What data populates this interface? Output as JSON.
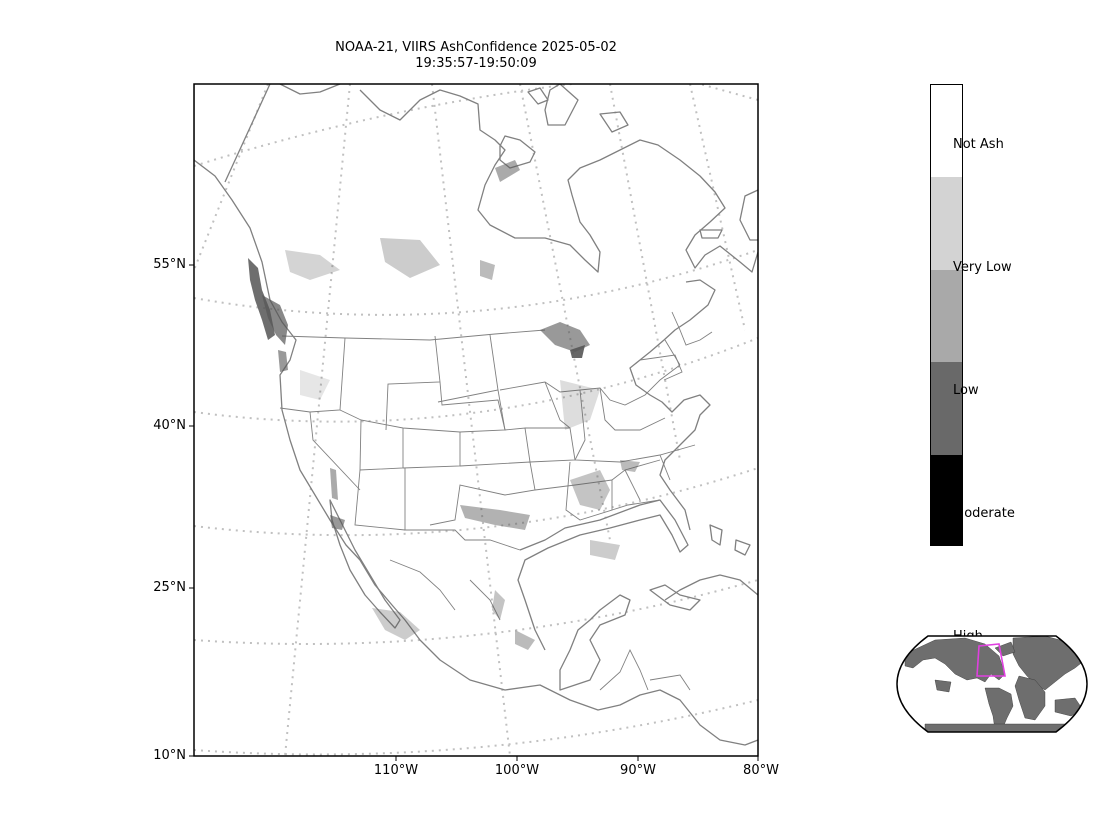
{
  "title": {
    "line1": "NOAA-21, VIIRS AshConfidence 2025-05-02",
    "line2": "19:35:57-19:50:09"
  },
  "map": {
    "latitude_ticks": [
      "55°N",
      "40°N",
      "25°N",
      "10°N"
    ],
    "longitude_ticks": [
      "110°W",
      "100°W",
      "90°W",
      "80°W"
    ],
    "coastline_color": "#808080",
    "graticule_color": "#c0c0c0",
    "ash_color": "#555555"
  },
  "colorbar": {
    "labels": [
      "Not Ash",
      "Very Low",
      "Low",
      "Moderate",
      "High"
    ],
    "colors": [
      "#ffffff",
      "#d3d3d3",
      "#a9a9a9",
      "#696969",
      "#000000"
    ]
  },
  "inset": {
    "land_color": "#6e6e6e",
    "extent_box_color": "#e040e0"
  }
}
